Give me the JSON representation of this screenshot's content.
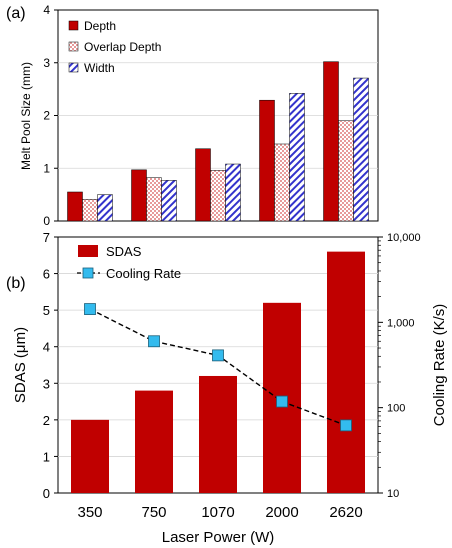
{
  "panel_a": {
    "label": "(a)",
    "legend": [
      "Depth",
      "Overlap Depth",
      "Width"
    ]
  },
  "panel_b": {
    "label": "(b)",
    "legend": [
      "SDAS",
      "Cooling Rate"
    ]
  },
  "colors": {
    "depth": "#c00000",
    "overlap": "#e79a9a",
    "width": "#3333cc",
    "sdas": "#c00000",
    "cooling": "#33bbee"
  },
  "chart_data": [
    {
      "type": "bar",
      "panel": "(a)",
      "categories": [
        "350",
        "750",
        "1070",
        "2000",
        "2620"
      ],
      "series": [
        {
          "name": "Depth",
          "values": [
            0.55,
            0.97,
            1.37,
            2.29,
            3.02
          ]
        },
        {
          "name": "Overlap Depth",
          "values": [
            0.41,
            0.82,
            0.96,
            1.46,
            1.9
          ]
        },
        {
          "name": "Width",
          "values": [
            0.5,
            0.77,
            1.08,
            2.42,
            2.71
          ]
        }
      ],
      "ylabel": "Melt Pool Size (mm)",
      "ylim": [
        0,
        4
      ],
      "yticks": [
        "0",
        "1",
        "2",
        "3",
        "4"
      ],
      "grid": true,
      "legend_position": "top-left"
    },
    {
      "type": "bar+line",
      "panel": "(b)",
      "categories": [
        "350",
        "750",
        "1070",
        "2000",
        "2620"
      ],
      "series": [
        {
          "name": "SDAS",
          "type": "bar",
          "axis": "left",
          "values": [
            2.0,
            2.8,
            3.2,
            5.2,
            6.6
          ]
        },
        {
          "name": "Cooling Rate",
          "type": "line",
          "axis": "right",
          "values": [
            1430,
            600,
            410,
            118,
            62
          ]
        }
      ],
      "xlabel": "Laser Power (W)",
      "ylabel": "SDAS (μm)",
      "y2label": "Cooling Rate (K/s)",
      "ylim": [
        0,
        7
      ],
      "yticks": [
        "0",
        "1",
        "2",
        "3",
        "4",
        "5",
        "6",
        "7"
      ],
      "y2lim": [
        10,
        10000
      ],
      "y2scale": "log",
      "y2ticks": [
        "10",
        "100",
        "1,000",
        "10,000"
      ],
      "grid": true,
      "legend_position": "top-left"
    }
  ]
}
